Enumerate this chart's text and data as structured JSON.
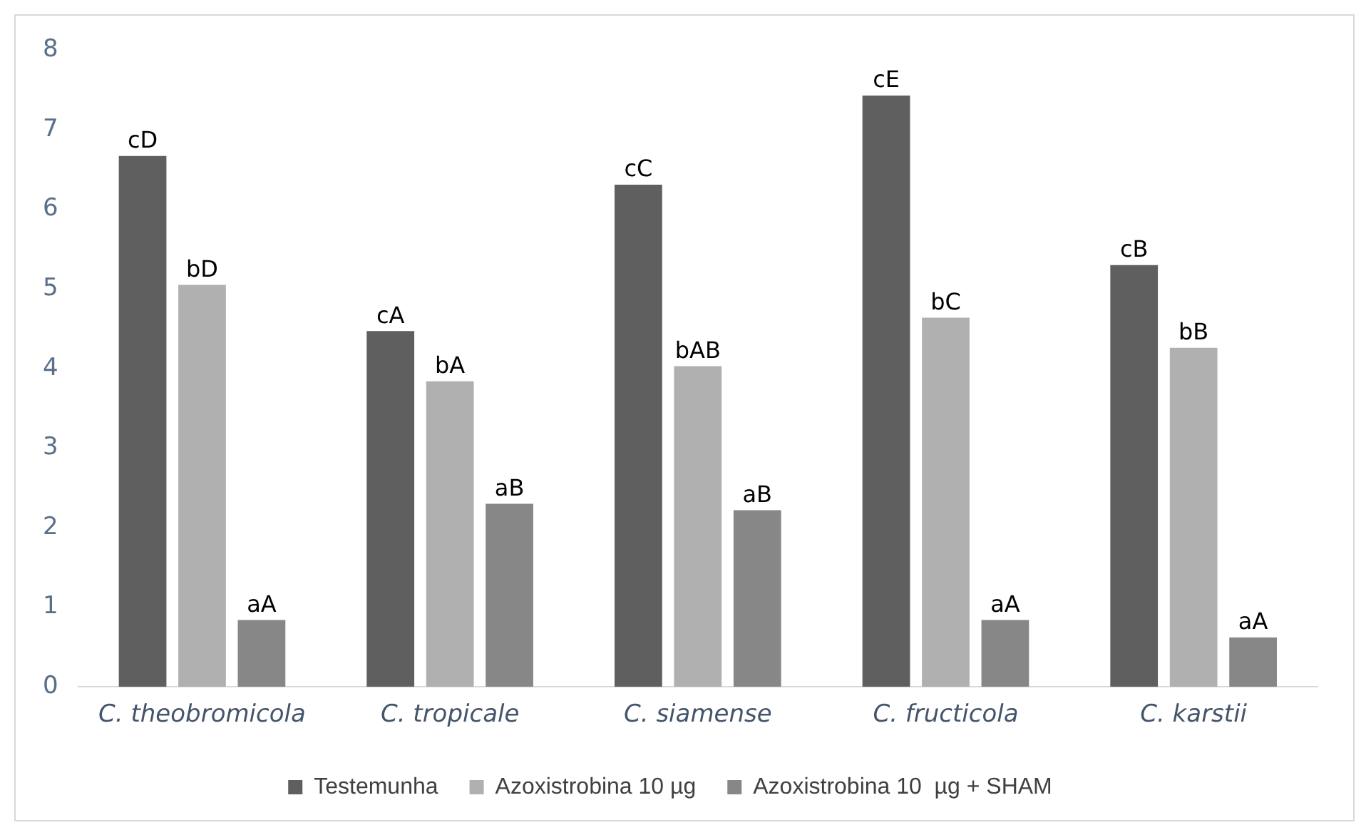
{
  "chart_data": {
    "type": "bar",
    "categories": [
      "C. theobromicola",
      "C. tropicale",
      "C. siamense",
      "C. fructicola",
      "C. karstii"
    ],
    "series": [
      {
        "name": "Testemunha",
        "color": "#5f5f5f",
        "values": [
          6.67,
          4.47,
          6.31,
          7.43,
          5.3
        ],
        "value_labels": [
          "cD",
          "cA",
          "cC",
          "cE",
          "cB"
        ]
      },
      {
        "name": "Azoxistrobina 10 µg",
        "color": "#b0b0b0",
        "values": [
          5.05,
          3.84,
          4.03,
          4.64,
          4.26
        ],
        "value_labels": [
          "bD",
          "bA",
          "bAB",
          "bC",
          "bB"
        ]
      },
      {
        "name": "Azoxistrobina 10  µg + SHAM",
        "color": "#878787",
        "values": [
          0.84,
          2.3,
          2.22,
          0.84,
          0.62
        ],
        "value_labels": [
          "aA",
          "aB",
          "aB",
          "aA",
          "aA"
        ]
      }
    ],
    "ylim": [
      0,
      8
    ],
    "yticks": [
      0,
      1,
      2,
      3,
      4,
      5,
      6,
      7,
      8
    ],
    "grid": false,
    "legend": "bottom"
  }
}
